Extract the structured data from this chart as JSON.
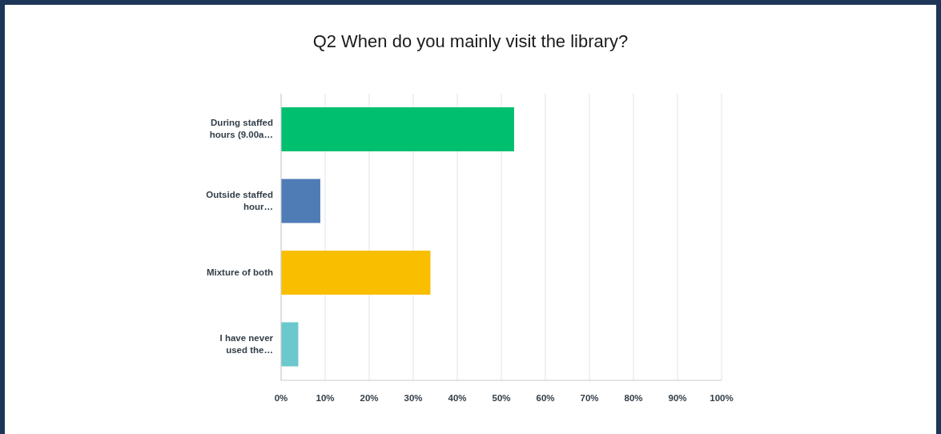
{
  "chart_data": {
    "type": "bar",
    "orientation": "horizontal",
    "title": "Q2 When do you mainly visit the library?",
    "categories": [
      "During staffed hours (9.00a…",
      "Outside staffed hour…",
      "Mixture of both",
      "I have never used the…"
    ],
    "values": [
      52.9,
      8.9,
      33.9,
      3.9
    ],
    "colors": [
      "#00bf6f",
      "#507cb6",
      "#f9be00",
      "#6bc8cd"
    ],
    "xlim": [
      0,
      100
    ],
    "xticks": [
      {
        "value": 0,
        "label": "0%"
      },
      {
        "value": 10,
        "label": "10%"
      },
      {
        "value": 20,
        "label": "20%"
      },
      {
        "value": 30,
        "label": "30%"
      },
      {
        "value": 40,
        "label": "40%"
      },
      {
        "value": 50,
        "label": "50%"
      },
      {
        "value": 60,
        "label": "60%"
      },
      {
        "value": 70,
        "label": "70%"
      },
      {
        "value": 80,
        "label": "80%"
      },
      {
        "value": 90,
        "label": "90%"
      },
      {
        "value": 100,
        "label": "100%"
      }
    ],
    "grid": "x",
    "legend": false
  }
}
